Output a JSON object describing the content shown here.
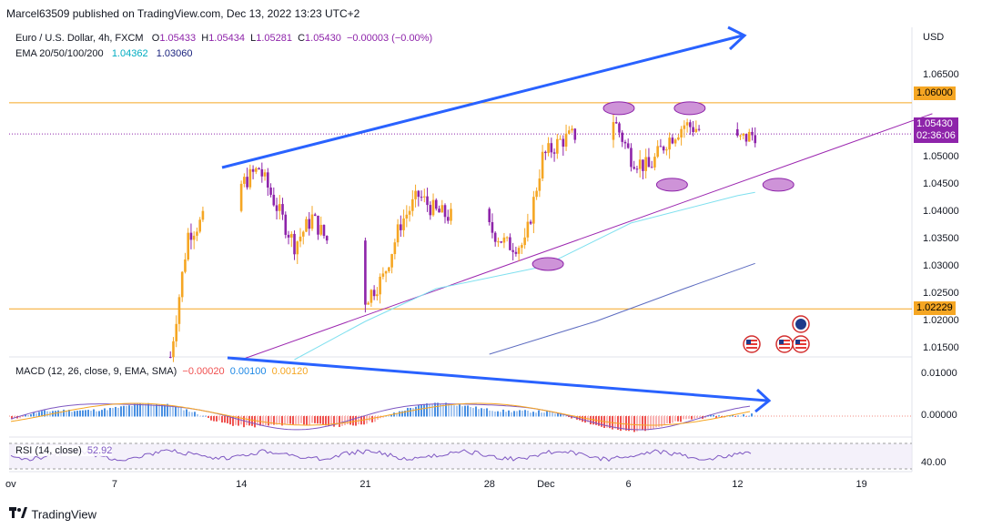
{
  "publish_line": "Marcel63509 published on TradingView.com, Dec 13, 2022 13:23 UTC+2",
  "legend": {
    "symbol": "Euro / U.S. Dollar, 4h, FXCM",
    "o_label": "O",
    "o": "1.05433",
    "h_label": "H",
    "h": "1.05434",
    "l_label": "L",
    "l": "1.05281",
    "c_label": "C",
    "c": "1.05430",
    "change": "−0.00003 (−0.00%)",
    "ema_label": "EMA 20/50/100/200",
    "ema_a": "1.04362",
    "ema_b": "1.03060"
  },
  "currency": "USD",
  "price_ticks": [
    "1.06500",
    "1.05000",
    "1.04500",
    "1.04000",
    "1.03500",
    "1.03000",
    "1.02500",
    "1.02000",
    "1.01500"
  ],
  "level_tags": {
    "upper": "1.06000",
    "lower": "1.02229"
  },
  "last_tag": {
    "price": "1.05430",
    "countdown": "02:36:06"
  },
  "macd": {
    "label": "MACD (12, 26, close, 9, EMA, SMA)",
    "v1": "−0.00020",
    "v2": "0.00100",
    "v3": "0.00120",
    "ticks": [
      "0.01000",
      "0.00000"
    ]
  },
  "rsi": {
    "label": "RSI (14, close)",
    "value": "52.92",
    "tick": "40.00"
  },
  "x_ticks": [
    "ov",
    "7",
    "14",
    "21",
    "28",
    "Dec",
    "6",
    "12",
    "19"
  ],
  "footer_brand": "TradingView",
  "colors": {
    "up": "#f5a623",
    "down": "#8e24aa",
    "ema_cyan": "#7fe0ef",
    "ema_blue": "#5c6bc0",
    "arrow": "#2962ff",
    "level": "#f5a623",
    "channel": "#9c27b0",
    "ellipse": "#ce93d8",
    "macd_pos": "#5b9cf0",
    "macd_neg": "#f05050",
    "signal": "#f5a623"
  },
  "chart_data": {
    "type": "candlestick",
    "ylim": [
      1.0135,
      1.0738
    ],
    "x_range": [
      "2022-11-01",
      "2022-12-23"
    ],
    "horizontal_levels": [
      1.06,
      1.02229
    ],
    "last_price": 1.0543,
    "anchor_points": [
      {
        "date": "2022-11-10",
        "price": 1.0135
      },
      {
        "date": "2022-11-11",
        "price": 1.036
      },
      {
        "date": "2022-11-15",
        "price": 1.048
      },
      {
        "date": "2022-11-17",
        "price": 1.034
      },
      {
        "date": "2022-11-18",
        "price": 1.039
      },
      {
        "date": "2022-11-21",
        "price": 1.024
      },
      {
        "date": "2022-11-22",
        "price": 1.028
      },
      {
        "date": "2022-11-23",
        "price": 1.038
      },
      {
        "date": "2022-11-24",
        "price": 1.043
      },
      {
        "date": "2022-11-25",
        "price": 1.04
      },
      {
        "date": "2022-11-28",
        "price": 1.037
      },
      {
        "date": "2022-11-29",
        "price": 1.034
      },
      {
        "date": "2022-11-30",
        "price": 1.034
      },
      {
        "date": "2022-12-01",
        "price": 1.05
      },
      {
        "date": "2022-12-02",
        "price": 1.053
      },
      {
        "date": "2022-12-05",
        "price": 1.057
      },
      {
        "date": "2022-12-06",
        "price": 1.05
      },
      {
        "date": "2022-12-07",
        "price": 1.048
      },
      {
        "date": "2022-12-08",
        "price": 1.053
      },
      {
        "date": "2022-12-09",
        "price": 1.056
      },
      {
        "date": "2022-12-12",
        "price": 1.053
      },
      {
        "date": "2022-12-13",
        "price": 1.0543
      }
    ],
    "ema_fast": [
      {
        "date": "2022-11-17",
        "price": 1.013
      },
      {
        "date": "2022-11-21",
        "price": 1.02
      },
      {
        "date": "2022-11-25",
        "price": 1.026
      },
      {
        "date": "2022-12-01",
        "price": 1.03
      },
      {
        "date": "2022-12-06",
        "price": 1.038
      },
      {
        "date": "2022-12-12",
        "price": 1.043
      },
      {
        "date": "2022-12-13",
        "price": 1.0436
      }
    ],
    "ema_slow": [
      {
        "date": "2022-11-28",
        "price": 1.014
      },
      {
        "date": "2022-12-04",
        "price": 1.02
      },
      {
        "date": "2022-12-09",
        "price": 1.026
      },
      {
        "date": "2022-12-13",
        "price": 1.0306
      }
    ],
    "channel_line": [
      {
        "date": "2022-11-14",
        "price": 1.013
      },
      {
        "date": "2022-12-23",
        "price": 1.058
      }
    ],
    "ellipses": [
      {
        "date": "2022-12-05",
        "price": 1.059
      },
      {
        "date": "2022-12-09",
        "price": 1.059
      },
      {
        "date": "2022-12-08",
        "price": 1.045
      },
      {
        "date": "2022-12-14",
        "price": 1.045
      },
      {
        "date": "2022-12-01",
        "price": 1.0305
      }
    ]
  }
}
